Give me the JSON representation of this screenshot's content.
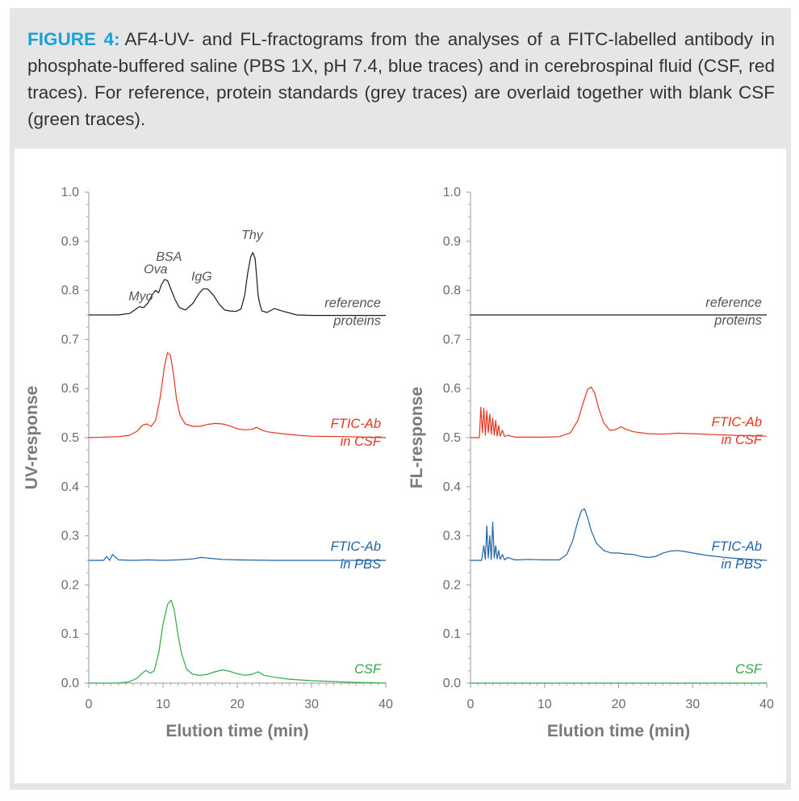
{
  "caption": {
    "figure_label": "FIGURE 4:",
    "text": "AF4-UV- and FL-fractograms from the analyses of a FITC-labelled antibody in phosphate-buffered saline (PBS 1X, pH 7.4, blue traces) and in cerebrospinal fluid (CSF, red traces). For reference, protein standards (grey traces) are overlaid together with blank CSF (green traces)."
  },
  "colors": {
    "reference": "#1a1a1a",
    "csf_sample": "#e8331d",
    "pbs_sample": "#1f62a8",
    "blank_csf": "#2ea844",
    "axis": "#9a9a9a",
    "caption_accent": "#1aa1d8"
  },
  "chart_data": [
    {
      "type": "line",
      "panel": "left",
      "xlabel": "Elution time (min)",
      "ylabel": "UV-response",
      "xlim": [
        0,
        40
      ],
      "ylim": [
        0,
        1.0
      ],
      "xticks": [
        "0",
        "10",
        "20",
        "30",
        "40"
      ],
      "yticks": [
        "0.0",
        "0.1",
        "0.2",
        "0.3",
        "0.4",
        "0.5",
        "0.6",
        "0.7",
        "0.8",
        "0.9",
        "1.0"
      ],
      "peak_labels": [
        {
          "text": "Myo",
          "x": 7.0,
          "y": 0.78
        },
        {
          "text": "Ova",
          "x": 9.0,
          "y": 0.835
        },
        {
          "text": "BSA",
          "x": 10.8,
          "y": 0.86
        },
        {
          "text": "IgG",
          "x": 15.2,
          "y": 0.82
        },
        {
          "text": "Thy",
          "x": 22.0,
          "y": 0.905
        }
      ],
      "series": [
        {
          "name": "reference proteins",
          "label_lines": [
            "reference",
            "proteins"
          ],
          "color_key": "reference",
          "label_color": "#555555",
          "x": [
            0,
            4,
            5.5,
            6.2,
            6.8,
            7.4,
            8.0,
            8.5,
            9.0,
            9.4,
            9.8,
            10.2,
            10.6,
            11.0,
            11.6,
            12.2,
            13.0,
            14.0,
            14.8,
            15.4,
            16.0,
            16.8,
            17.6,
            18.3,
            19.0,
            19.8,
            20.5,
            21.0,
            21.4,
            21.8,
            22.1,
            22.4,
            22.6,
            22.8,
            23.0,
            23.3,
            24.0,
            25.0,
            26.0,
            28.0,
            30,
            35,
            40
          ],
          "y": [
            0.75,
            0.75,
            0.753,
            0.76,
            0.767,
            0.765,
            0.775,
            0.79,
            0.8,
            0.795,
            0.812,
            0.822,
            0.82,
            0.805,
            0.782,
            0.765,
            0.76,
            0.773,
            0.793,
            0.803,
            0.803,
            0.79,
            0.771,
            0.76,
            0.758,
            0.757,
            0.762,
            0.79,
            0.835,
            0.868,
            0.877,
            0.865,
            0.83,
            0.79,
            0.775,
            0.758,
            0.755,
            0.763,
            0.758,
            0.75,
            0.749,
            0.749,
            0.749
          ]
        },
        {
          "name": "FTIC-Ab in CSF",
          "label_lines": [
            "FTIC-Ab",
            "in CSF"
          ],
          "color_key": "csf_sample",
          "label_color": "#e8331d",
          "x": [
            0,
            2,
            4,
            5.5,
            6.5,
            7.2,
            7.8,
            8.4,
            9.0,
            9.6,
            10.2,
            10.6,
            11.0,
            11.4,
            11.8,
            12.3,
            13.0,
            14.0,
            15.0,
            16.0,
            17.0,
            18.0,
            19.0,
            20.0,
            21.0,
            22.0,
            22.6,
            23.2,
            24.0,
            26.0,
            28.0,
            30,
            35,
            40
          ],
          "y": [
            0.5,
            0.501,
            0.502,
            0.505,
            0.513,
            0.525,
            0.528,
            0.523,
            0.535,
            0.58,
            0.645,
            0.673,
            0.668,
            0.63,
            0.58,
            0.545,
            0.528,
            0.523,
            0.523,
            0.527,
            0.529,
            0.528,
            0.524,
            0.518,
            0.516,
            0.517,
            0.521,
            0.516,
            0.512,
            0.508,
            0.505,
            0.503,
            0.502,
            0.5
          ]
        },
        {
          "name": "FTIC-Ab in PBS",
          "label_lines": [
            "FTIC-Ab",
            "in PBS"
          ],
          "color_key": "pbs_sample",
          "label_color": "#1f62a8",
          "x": [
            0,
            2.0,
            2.4,
            2.8,
            3.2,
            4.0,
            6.0,
            8.0,
            10.0,
            12.0,
            14.0,
            15.2,
            16.5,
            18.0,
            20.0,
            25.0,
            30.0,
            35.0,
            40.0
          ],
          "y": [
            0.25,
            0.25,
            0.258,
            0.25,
            0.262,
            0.251,
            0.25,
            0.251,
            0.25,
            0.251,
            0.253,
            0.256,
            0.254,
            0.252,
            0.251,
            0.25,
            0.25,
            0.25,
            0.25
          ]
        },
        {
          "name": "CSF",
          "label_lines": [
            "CSF"
          ],
          "color_key": "blank_csf",
          "label_color": "#2ea844",
          "x": [
            0,
            4,
            5.5,
            6.5,
            7.2,
            7.7,
            8.3,
            8.8,
            9.4,
            10.0,
            10.6,
            11.1,
            11.5,
            12.0,
            12.5,
            13.2,
            14.0,
            15.0,
            16.0,
            17.0,
            18.0,
            19.0,
            20.0,
            21.0,
            22.0,
            22.8,
            23.6,
            25.0,
            27.0,
            30.0,
            35.0,
            40.0
          ],
          "y": [
            0.0,
            0.0,
            0.003,
            0.01,
            0.02,
            0.026,
            0.02,
            0.025,
            0.06,
            0.12,
            0.16,
            0.169,
            0.15,
            0.1,
            0.06,
            0.028,
            0.018,
            0.016,
            0.018,
            0.023,
            0.027,
            0.024,
            0.019,
            0.016,
            0.018,
            0.023,
            0.016,
            0.012,
            0.008,
            0.005,
            0.002,
            0.0
          ]
        }
      ]
    },
    {
      "type": "line",
      "panel": "right",
      "xlabel": "Elution time (min)",
      "ylabel": "FL-response",
      "xlim": [
        0,
        40
      ],
      "ylim": [
        0,
        1.0
      ],
      "xticks": [
        "0",
        "10",
        "20",
        "30",
        "40"
      ],
      "yticks": [
        "0.0",
        "0.1",
        "0.2",
        "0.3",
        "0.4",
        "0.5",
        "0.6",
        "0.7",
        "0.8",
        "0.9",
        "1.0"
      ],
      "series": [
        {
          "name": "reference proteins",
          "label_lines": [
            "reference",
            "proteins"
          ],
          "color_key": "reference",
          "label_color": "#555555",
          "x": [
            0,
            40
          ],
          "y": [
            0.75,
            0.75
          ]
        },
        {
          "name": "FTIC-Ab in CSF",
          "label_lines": [
            "FTIC-Ab",
            "in CSF"
          ],
          "color_key": "csf_sample",
          "label_color": "#e8331d",
          "x": [
            0,
            1.2,
            1.4,
            1.6,
            1.8,
            2.0,
            2.2,
            2.4,
            2.6,
            2.8,
            3.0,
            3.2,
            3.4,
            3.6,
            3.8,
            4.0,
            4.3,
            4.6,
            5.0,
            6.0,
            8.0,
            10.0,
            12.0,
            13.5,
            14.5,
            15.2,
            15.8,
            16.3,
            16.8,
            17.3,
            18.0,
            18.8,
            19.5,
            20.3,
            21.0,
            22.0,
            24.0,
            26.0,
            28.0,
            30.0,
            35.0,
            40.0
          ],
          "y": [
            0.5,
            0.5,
            0.562,
            0.51,
            0.56,
            0.505,
            0.555,
            0.51,
            0.548,
            0.507,
            0.54,
            0.505,
            0.535,
            0.503,
            0.525,
            0.503,
            0.515,
            0.502,
            0.505,
            0.501,
            0.501,
            0.501,
            0.502,
            0.51,
            0.535,
            0.57,
            0.598,
            0.603,
            0.59,
            0.56,
            0.53,
            0.515,
            0.516,
            0.522,
            0.517,
            0.512,
            0.508,
            0.507,
            0.509,
            0.508,
            0.505,
            0.503
          ]
        },
        {
          "name": "FTIC-Ab in PBS",
          "label_lines": [
            "FTIC-Ab",
            "in PBS"
          ],
          "color_key": "pbs_sample",
          "label_color": "#1f62a8",
          "x": [
            0,
            1.5,
            1.8,
            2.0,
            2.2,
            2.4,
            2.6,
            2.8,
            3.0,
            3.2,
            3.4,
            3.6,
            3.8,
            4.0,
            4.3,
            4.6,
            5.0,
            6.0,
            8.0,
            10.0,
            12.0,
            13.0,
            13.8,
            14.5,
            15.0,
            15.4,
            15.8,
            16.3,
            17.0,
            18.0,
            19.0,
            20.0,
            21.0,
            22.0,
            23.0,
            24.0,
            25.0,
            26.0,
            27.0,
            28.0,
            29.0,
            30.0,
            32.0,
            35.0,
            38.0,
            40.0
          ],
          "y": [
            0.25,
            0.25,
            0.28,
            0.252,
            0.32,
            0.255,
            0.3,
            0.252,
            0.328,
            0.255,
            0.28,
            0.253,
            0.27,
            0.252,
            0.262,
            0.251,
            0.256,
            0.251,
            0.252,
            0.251,
            0.251,
            0.262,
            0.29,
            0.33,
            0.352,
            0.355,
            0.338,
            0.31,
            0.285,
            0.27,
            0.265,
            0.265,
            0.263,
            0.262,
            0.258,
            0.256,
            0.258,
            0.265,
            0.269,
            0.27,
            0.268,
            0.265,
            0.26,
            0.255,
            0.252,
            0.25
          ]
        },
        {
          "name": "CSF",
          "label_lines": [
            "CSF"
          ],
          "color_key": "blank_csf",
          "label_color": "#2ea844",
          "x": [
            0,
            40
          ],
          "y": [
            0.0,
            0.0
          ]
        }
      ]
    }
  ]
}
